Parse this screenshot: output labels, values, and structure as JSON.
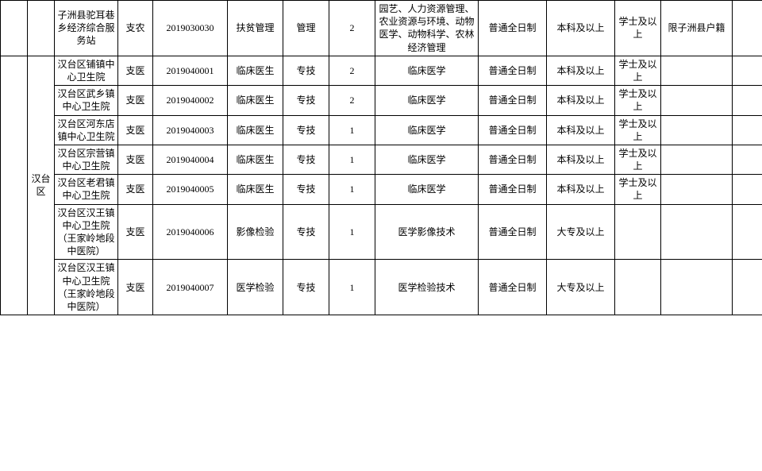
{
  "table": {
    "border_color": "#000000",
    "background_color": "#ffffff",
    "font_size": 12,
    "rows": [
      {
        "col0": "",
        "col1": "",
        "c2": "子洲县驼耳巷乡经济综合服务站",
        "c3": "支农",
        "c4": "2019030030",
        "c5": "扶贫管理",
        "c6": "管理",
        "c7": "2",
        "c8": "园艺、人力资源管理、农业资源与环境、动物医学、动物科学、农林经济管理",
        "c9": "普通全日制",
        "c10": "本科及以上",
        "c11": "学士及以上",
        "c12": "限子洲县户籍",
        "c13": ""
      },
      {
        "c2": "汉台区铺镇中心卫生院",
        "c3": "支医",
        "c4": "2019040001",
        "c5": "临床医生",
        "c6": "专技",
        "c7": "2",
        "c8": "临床医学",
        "c9": "普通全日制",
        "c10": "本科及以上",
        "c11": "学士及以上",
        "c12": "",
        "c13": ""
      },
      {
        "c2": "汉台区武乡镇中心卫生院",
        "c3": "支医",
        "c4": "2019040002",
        "c5": "临床医生",
        "c6": "专技",
        "c7": "2",
        "c8": "临床医学",
        "c9": "普通全日制",
        "c10": "本科及以上",
        "c11": "学士及以上",
        "c12": "",
        "c13": ""
      },
      {
        "c2": "汉台区河东店镇中心卫生院",
        "c3": "支医",
        "c4": "2019040003",
        "c5": "临床医生",
        "c6": "专技",
        "c7": "1",
        "c8": "临床医学",
        "c9": "普通全日制",
        "c10": "本科及以上",
        "c11": "学士及以上",
        "c12": "",
        "c13": ""
      },
      {
        "c2": "汉台区宗营镇中心卫生院",
        "c3": "支医",
        "c4": "2019040004",
        "c5": "临床医生",
        "c6": "专技",
        "c7": "1",
        "c8": "临床医学",
        "c9": "普通全日制",
        "c10": "本科及以上",
        "c11": "学士及以上",
        "c12": "",
        "c13": ""
      },
      {
        "c2": "汉台区老君镇中心卫生院",
        "c3": "支医",
        "c4": "2019040005",
        "c5": "临床医生",
        "c6": "专技",
        "c7": "1",
        "c8": "临床医学",
        "c9": "普通全日制",
        "c10": "本科及以上",
        "c11": "学士及以上",
        "c12": "",
        "c13": ""
      },
      {
        "c2": "汉台区汉王镇中心卫生院（王家岭地段中医院）",
        "c3": "支医",
        "c4": "2019040006",
        "c5": "影像检验",
        "c6": "专技",
        "c7": "1",
        "c8": "医学影像技术",
        "c9": "普通全日制",
        "c10": "大专及以上",
        "c11": "",
        "c12": "",
        "c13": ""
      },
      {
        "c2": "汉台区汉王镇中心卫生院（王家岭地段中医院）",
        "c3": "支医",
        "c4": "2019040007",
        "c5": "医学检验",
        "c6": "专技",
        "c7": "1",
        "c8": "医学检验技术",
        "c9": "普通全日制",
        "c10": "大专及以上",
        "c11": "",
        "c12": "",
        "c13": ""
      }
    ],
    "region_merge_label": "汉台区"
  }
}
